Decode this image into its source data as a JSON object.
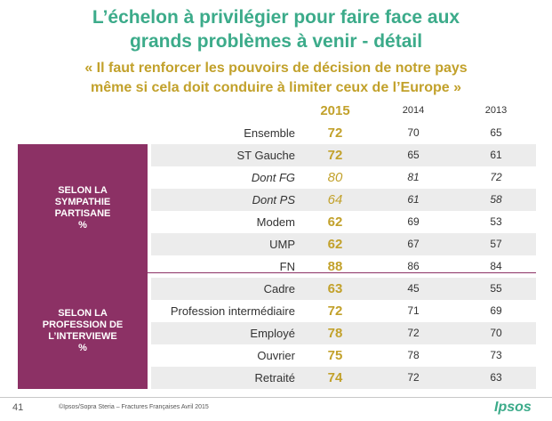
{
  "title": {
    "line1": "L’échelon à privilégier pour faire face aux",
    "line2": "grands problèmes à venir - détail"
  },
  "subtitle": {
    "line1": "« Il faut renforcer les pouvoirs de décision de notre pays",
    "line2": "même si cela doit conduire à limiter ceux de l’Europe »"
  },
  "columns": {
    "c2015": "2015",
    "c2014": "2014",
    "c2013": "2013"
  },
  "groups": {
    "sympathie": [
      "SELON LA",
      "SYMPATHIE",
      "PARTISANE",
      "%"
    ],
    "profession": [
      "SELON LA",
      "PROFESSION DE",
      "L’INTERVIEWE",
      "%"
    ]
  },
  "rows": [
    {
      "label": "Ensemble",
      "v2015": "72",
      "v2014": "70",
      "v2013": "65"
    },
    {
      "label": "ST Gauche",
      "v2015": "72",
      "v2014": "65",
      "v2013": "61"
    },
    {
      "label": "Dont FG",
      "v2015": "80",
      "v2014": "81",
      "v2013": "72"
    },
    {
      "label": "Dont PS",
      "v2015": "64",
      "v2014": "61",
      "v2013": "58"
    },
    {
      "label": "Modem",
      "v2015": "62",
      "v2014": "69",
      "v2013": "53"
    },
    {
      "label": "UMP",
      "v2015": "62",
      "v2014": "67",
      "v2013": "57"
    },
    {
      "label": "FN",
      "v2015": "88",
      "v2014": "86",
      "v2013": "84"
    },
    {
      "label": "Cadre",
      "v2015": "63",
      "v2014": "45",
      "v2013": "55"
    },
    {
      "label": "Profession intermédiaire",
      "v2015": "72",
      "v2014": "71",
      "v2013": "69"
    },
    {
      "label": "Employé",
      "v2015": "78",
      "v2014": "72",
      "v2013": "70"
    },
    {
      "label": "Ouvrier",
      "v2015": "75",
      "v2014": "78",
      "v2013": "73"
    },
    {
      "label": "Retraité",
      "v2015": "74",
      "v2014": "72",
      "v2013": "63"
    }
  ],
  "footer": {
    "page": "41",
    "source": "©Ipsos/Sopra Steria –  Fractures Françaises  Avril 2015",
    "logo": "Ipsos"
  }
}
